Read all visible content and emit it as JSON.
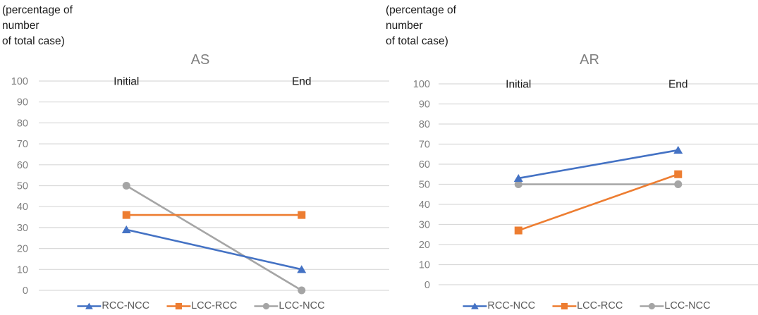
{
  "colors": {
    "background": "#ffffff",
    "gridline": "#d9d9d9",
    "tick_label": "#808080",
    "category_label": "#1a1a1a",
    "title": "#7f7f7f",
    "legend_text": "#595959",
    "series_blue": "#4472C4",
    "series_orange": "#ED7D31",
    "series_gray": "#A5A5A5"
  },
  "chart_data": [
    {
      "type": "line",
      "title": "AS",
      "unit_label_lines": [
        "(percentage of",
        "number",
        "of total case)"
      ],
      "categories": [
        "Initial",
        "End"
      ],
      "series": [
        {
          "name": "RCC-NCC",
          "marker": "triangle",
          "color": "#4472C4",
          "values": [
            29,
            10
          ]
        },
        {
          "name": "LCC-RCC",
          "marker": "square",
          "color": "#ED7D31",
          "values": [
            36,
            36
          ]
        },
        {
          "name": "LCC-NCC",
          "marker": "circle",
          "color": "#A5A5A5",
          "values": [
            50,
            0
          ]
        }
      ],
      "ylim": [
        0,
        100
      ],
      "ytick_step": 10,
      "grid": true,
      "legend_position": "bottom"
    },
    {
      "type": "line",
      "title": "AR",
      "unit_label_lines": [
        "(percentage of",
        "number",
        "of total case)"
      ],
      "categories": [
        "Initial",
        "End"
      ],
      "series": [
        {
          "name": "RCC-NCC",
          "marker": "triangle",
          "color": "#4472C4",
          "values": [
            53,
            67
          ]
        },
        {
          "name": "LCC-RCC",
          "marker": "square",
          "color": "#ED7D31",
          "values": [
            27,
            55
          ]
        },
        {
          "name": "LCC-NCC",
          "marker": "circle",
          "color": "#A5A5A5",
          "values": [
            50,
            50
          ]
        }
      ],
      "ylim": [
        0,
        100
      ],
      "ytick_step": 10,
      "grid": true,
      "legend_position": "bottom"
    }
  ]
}
